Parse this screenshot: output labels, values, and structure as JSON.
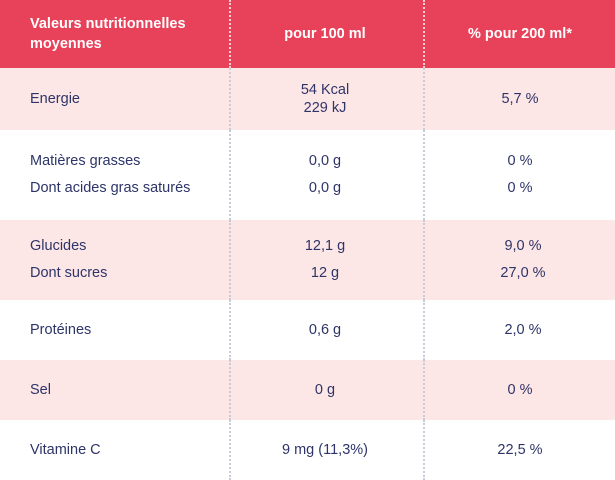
{
  "header": {
    "col1": [
      "Valeurs nutritionnelles",
      "moyennes"
    ],
    "col2": "pour 100 ml",
    "col3": "% pour 200 ml*"
  },
  "rows": [
    {
      "labels": [
        "Energie"
      ],
      "per100": [
        "54 Kcal",
        "229 kJ"
      ],
      "per200": [
        "5,7 %"
      ]
    },
    {
      "labels": [
        "Matières grasses",
        "Dont acides gras saturés"
      ],
      "per100": [
        "0,0 g",
        "0,0 g"
      ],
      "per200": [
        "0 %",
        "0 %"
      ]
    },
    {
      "labels": [
        "Glucides",
        "Dont sucres"
      ],
      "per100": [
        "12,1 g",
        "12 g"
      ],
      "per200": [
        "9,0 %",
        "27,0 %"
      ]
    },
    {
      "labels": [
        "Protéines"
      ],
      "per100": [
        "0,6 g"
      ],
      "per200": [
        "2,0 %"
      ]
    },
    {
      "labels": [
        "Sel"
      ],
      "per100": [
        "0 g"
      ],
      "per200": [
        "0 %"
      ]
    },
    {
      "labels": [
        "Vitamine C"
      ],
      "per100": [
        "9 mg (11,3%)"
      ],
      "per200": [
        "22,5 %"
      ]
    }
  ],
  "colors": {
    "header_bg": "#e8415a",
    "row_pink": "#fde6e6",
    "text": "#2d3468"
  }
}
